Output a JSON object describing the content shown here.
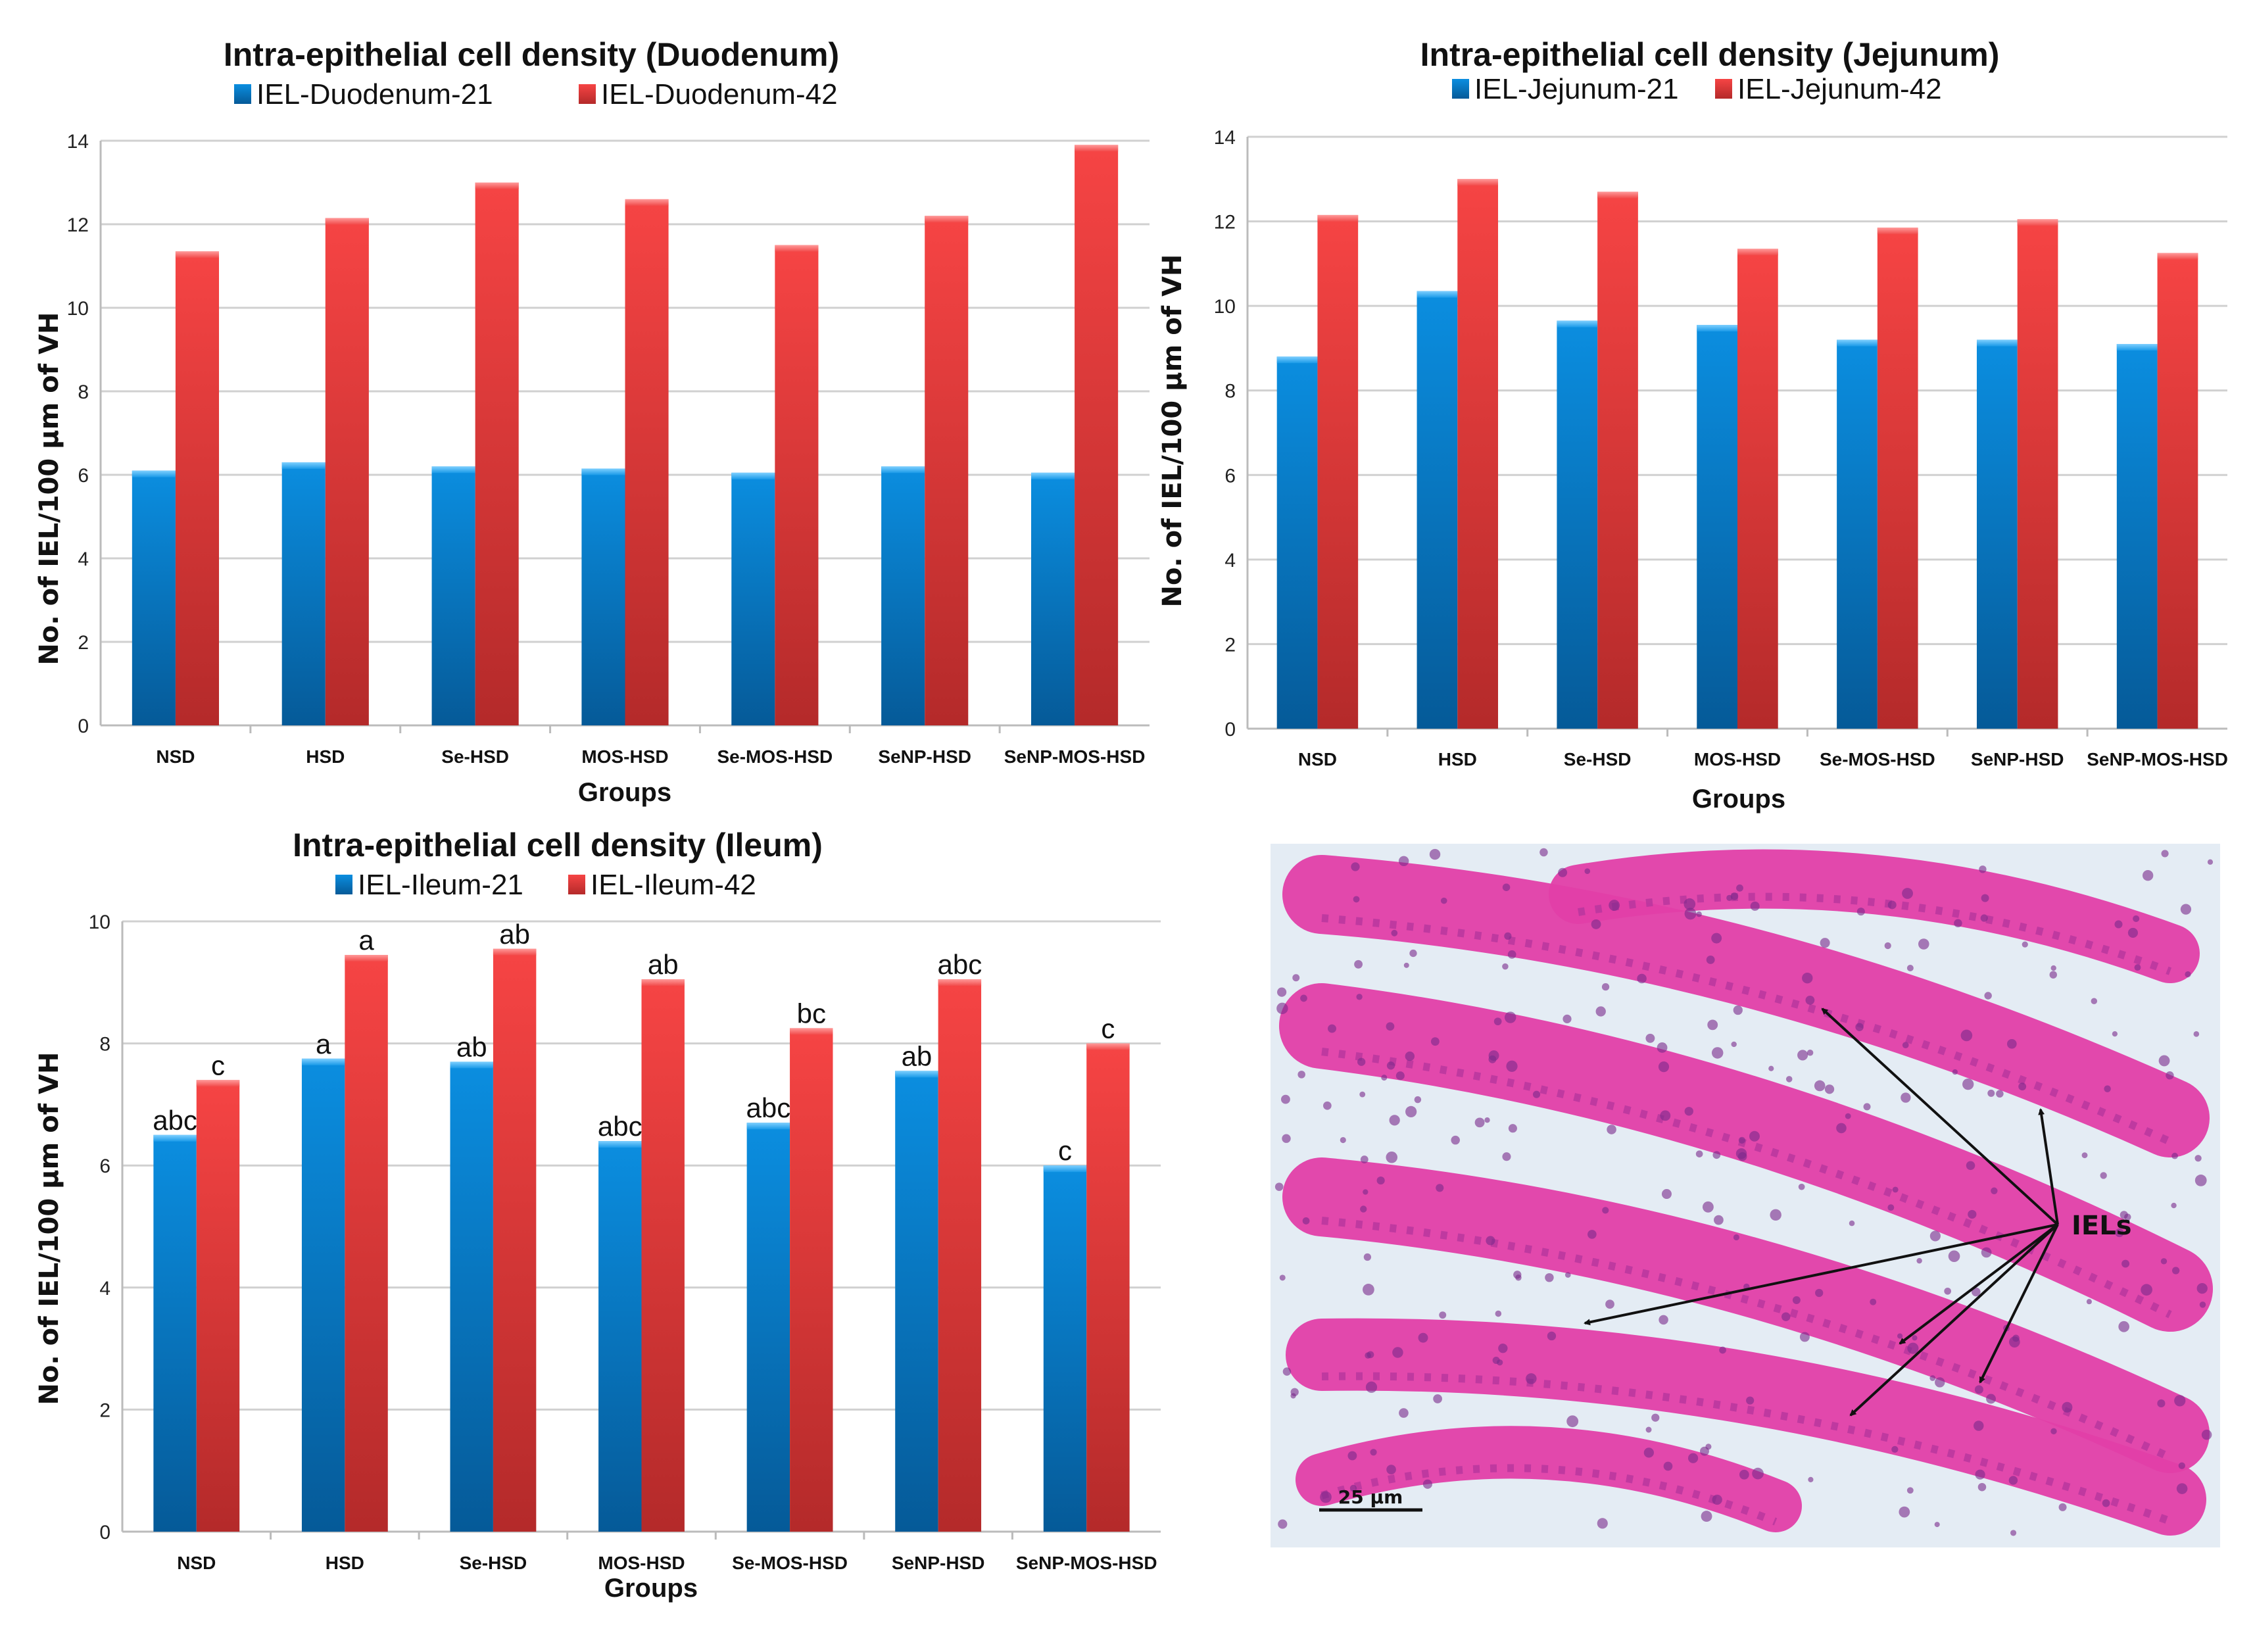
{
  "colors": {
    "series1": "#0a7fd0",
    "series2": "#e03a3a",
    "grid": "#d0d0d0",
    "tissue": "#e23fa8",
    "lumen": "#e4ecf4",
    "nuclei": "#7a2a8a"
  },
  "chart_data": [
    {
      "type": "bar",
      "title": "Intra-epithelial cell density (Duodenum)",
      "xlabel": "Groups",
      "ylabel": "No. of IEL/100 µm of VH",
      "ylim": [
        0,
        14
      ],
      "yticks": [
        0,
        2,
        4,
        6,
        8,
        10,
        12,
        14
      ],
      "grid": true,
      "legend": "top",
      "categories": [
        "NSD",
        "HSD",
        "Se-HSD",
        "MOS-HSD",
        "Se-MOS-HSD",
        "SeNP-HSD",
        "SeNP-MOS-HSD"
      ],
      "series": [
        {
          "name": "IEL-Duodenum-21",
          "values": [
            6.1,
            6.3,
            6.2,
            6.15,
            6.05,
            6.2,
            6.05
          ]
        },
        {
          "name": "IEL-Duodenum-42",
          "values": [
            11.35,
            12.15,
            13.0,
            12.6,
            11.5,
            12.2,
            13.9
          ]
        }
      ]
    },
    {
      "type": "bar",
      "title": "Intra-epithelial cell density (Jejunum)",
      "xlabel": "Groups",
      "ylabel": "No. of IEL/100 µm of VH",
      "ylim": [
        0,
        14
      ],
      "yticks": [
        0,
        2,
        4,
        6,
        8,
        10,
        12,
        14
      ],
      "grid": true,
      "legend": "top",
      "categories": [
        "NSD",
        "HSD",
        "Se-HSD",
        "MOS-HSD",
        "Se-MOS-HSD",
        "SeNP-HSD",
        "SeNP-MOS-HSD"
      ],
      "series": [
        {
          "name": "IEL-Jejunum-21",
          "values": [
            8.8,
            10.35,
            9.65,
            9.55,
            9.2,
            9.2,
            9.1
          ]
        },
        {
          "name": "IEL-Jejunum-42",
          "values": [
            12.15,
            13.0,
            12.7,
            11.35,
            11.85,
            12.05,
            11.25
          ]
        }
      ]
    },
    {
      "type": "bar",
      "title": "Intra-epithelial cell density (Ileum)",
      "xlabel": "Groups",
      "ylabel": "No. of IEL/100 µm of VH",
      "ylim": [
        0,
        10
      ],
      "yticks": [
        0,
        2,
        4,
        6,
        8,
        10
      ],
      "grid": true,
      "legend": "top",
      "categories": [
        "NSD",
        "HSD",
        "Se-HSD",
        "MOS-HSD",
        "Se-MOS-HSD",
        "SeNP-HSD",
        "SeNP-MOS-HSD"
      ],
      "series": [
        {
          "name": "IEL-Ileum-21",
          "values": [
            6.5,
            7.75,
            7.7,
            6.4,
            6.7,
            7.55,
            6.0
          ],
          "labels": [
            "abc",
            "a",
            "ab",
            "abc",
            "abc",
            "ab",
            "c"
          ]
        },
        {
          "name": "IEL-Ileum-42",
          "values": [
            7.4,
            9.45,
            9.55,
            9.05,
            8.25,
            9.05,
            8.0
          ],
          "labels": [
            "c",
            "a",
            "ab",
            "ab",
            "bc",
            "abc",
            "c"
          ]
        }
      ]
    }
  ],
  "micrograph": {
    "annotation": "IELs",
    "scale_bar": "25 µm"
  }
}
